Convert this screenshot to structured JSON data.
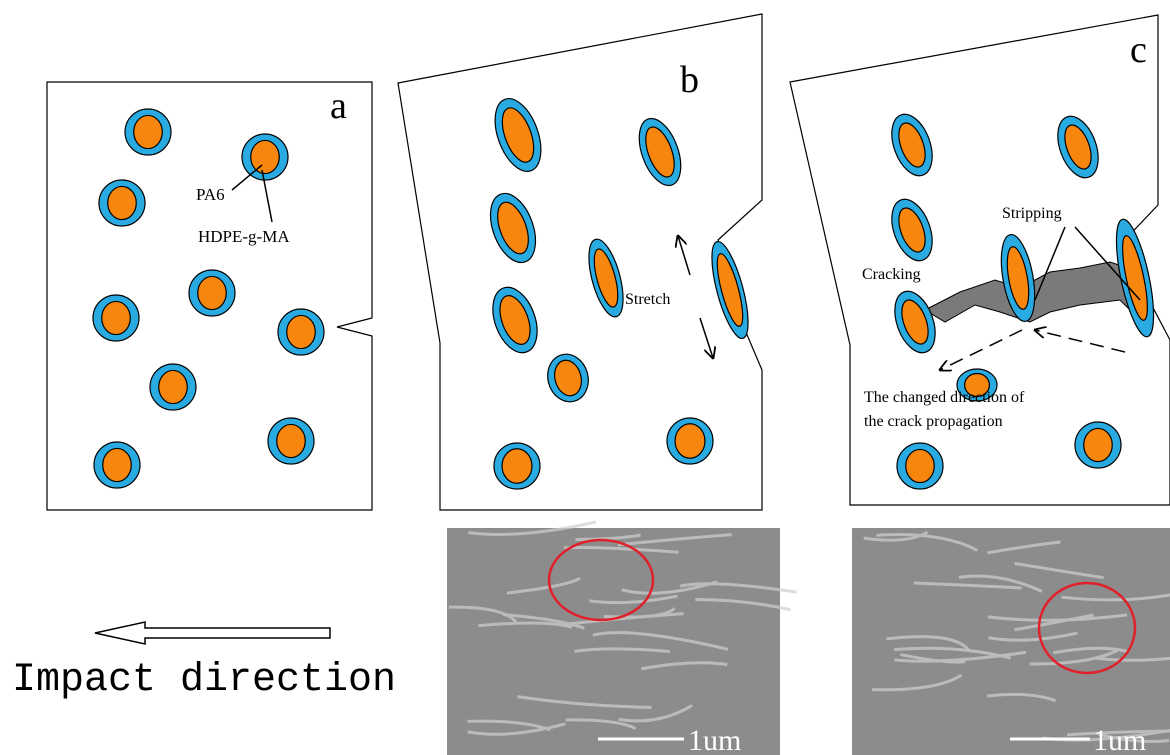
{
  "panels": [
    {
      "label": "a"
    },
    {
      "label": "b"
    },
    {
      "label": "c"
    }
  ],
  "annotations": {
    "pa6": "PA6",
    "hdpe": "HDPE-g-MA",
    "stretch": "Stretch",
    "stripping": "Stripping",
    "cracking": "Cracking",
    "direction_line1": "The changed direction of",
    "direction_line2": "the crack propagation"
  },
  "impact": "Impact direction",
  "scale_bars": [
    "1um",
    "1um"
  ]
}
